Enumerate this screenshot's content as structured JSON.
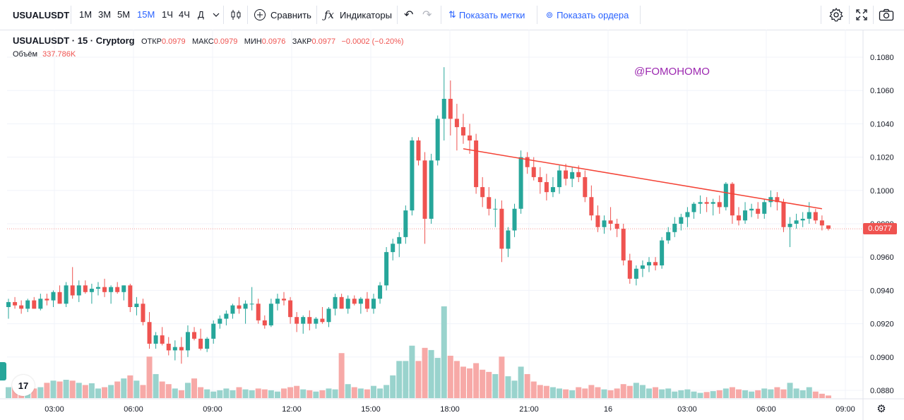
{
  "toolbar": {
    "symbol": "USUALUSDT",
    "intervals": [
      "1М",
      "3М",
      "5М",
      "15М",
      "1Ч",
      "4Ч",
      "Д"
    ],
    "active_interval": "15М",
    "compare_label": "Сравнить",
    "indicators_label": "Индикаторы",
    "show_marks_label": "Показать метки",
    "show_orders_label": "Показать ордера"
  },
  "legend": {
    "title": "USUALUSDT · 15 · Cryptorg",
    "open_label": "ОТКР",
    "open": "0.0979",
    "high_label": "МАКС",
    "high": "0.0979",
    "low_label": "МИН",
    "low": "0.0976",
    "close_label": "ЗАКР",
    "close": "0.0977",
    "change": "−0.0002 (−0.20%)",
    "volume_label": "Объём",
    "volume": "337.786K"
  },
  "watermark": "@FOMOHOMO",
  "last_price_label": "0.0977",
  "colors": {
    "up": "#26a69a",
    "down": "#ef5350",
    "trendline": "#f44336",
    "accent": "#2962ff",
    "watermark": "#9c27b0"
  },
  "chart_data": {
    "type": "candlestick",
    "price_ticks": [
      "0.1080",
      "0.1060",
      "0.1040",
      "0.1020",
      "0.1000",
      "0.0980",
      "0.0960",
      "0.0940",
      "0.0920",
      "0.0900",
      "0.0880"
    ],
    "time_ticks": [
      "03:00",
      "06:00",
      "09:00",
      "12:00",
      "15:00",
      "18:00",
      "21:00",
      "16",
      "03:00",
      "06:00",
      "09:00"
    ],
    "ylim": [
      0.0874,
      0.1085
    ],
    "last_price": 0.0977,
    "trendline": {
      "from": {
        "candle": 71,
        "price": 0.1025
      },
      "to": {
        "candle": 127,
        "price": 0.0989
      }
    },
    "candles": [
      {
        "o": 0.093,
        "h": 0.0935,
        "l": 0.0923,
        "c": 0.0933,
        "v": 25
      },
      {
        "o": 0.0933,
        "h": 0.0936,
        "l": 0.0929,
        "c": 0.0931,
        "v": 30
      },
      {
        "o": 0.0931,
        "h": 0.0934,
        "l": 0.0926,
        "c": 0.0929,
        "v": 28
      },
      {
        "o": 0.0929,
        "h": 0.0935,
        "l": 0.0927,
        "c": 0.0934,
        "v": 18
      },
      {
        "o": 0.0934,
        "h": 0.0936,
        "l": 0.0929,
        "c": 0.0929,
        "v": 22
      },
      {
        "o": 0.0929,
        "h": 0.0938,
        "l": 0.0928,
        "c": 0.0935,
        "v": 25
      },
      {
        "o": 0.0935,
        "h": 0.0938,
        "l": 0.0931,
        "c": 0.0934,
        "v": 35
      },
      {
        "o": 0.0934,
        "h": 0.094,
        "l": 0.093,
        "c": 0.0939,
        "v": 40
      },
      {
        "o": 0.0939,
        "h": 0.0943,
        "l": 0.0932,
        "c": 0.0932,
        "v": 38
      },
      {
        "o": 0.0932,
        "h": 0.0945,
        "l": 0.093,
        "c": 0.0943,
        "v": 42
      },
      {
        "o": 0.0943,
        "h": 0.0954,
        "l": 0.0935,
        "c": 0.0937,
        "v": 40
      },
      {
        "o": 0.0937,
        "h": 0.0946,
        "l": 0.0933,
        "c": 0.0943,
        "v": 35
      },
      {
        "o": 0.0943,
        "h": 0.0946,
        "l": 0.0938,
        "c": 0.0939,
        "v": 30
      },
      {
        "o": 0.0939,
        "h": 0.0944,
        "l": 0.0932,
        "c": 0.0941,
        "v": 34
      },
      {
        "o": 0.0941,
        "h": 0.0945,
        "l": 0.0937,
        "c": 0.0942,
        "v": 22
      },
      {
        "o": 0.0942,
        "h": 0.0947,
        "l": 0.0936,
        "c": 0.0939,
        "v": 25
      },
      {
        "o": 0.0939,
        "h": 0.0943,
        "l": 0.0932,
        "c": 0.0942,
        "v": 30
      },
      {
        "o": 0.0942,
        "h": 0.0945,
        "l": 0.0938,
        "c": 0.0939,
        "v": 38
      },
      {
        "o": 0.0939,
        "h": 0.0943,
        "l": 0.0934,
        "c": 0.0943,
        "v": 45
      },
      {
        "o": 0.0943,
        "h": 0.0944,
        "l": 0.0927,
        "c": 0.093,
        "v": 52
      },
      {
        "o": 0.093,
        "h": 0.0936,
        "l": 0.0925,
        "c": 0.0932,
        "v": 40
      },
      {
        "o": 0.0932,
        "h": 0.0935,
        "l": 0.0919,
        "c": 0.0921,
        "v": 30
      },
      {
        "o": 0.0921,
        "h": 0.0927,
        "l": 0.0905,
        "c": 0.0908,
        "v": 95
      },
      {
        "o": 0.0908,
        "h": 0.0915,
        "l": 0.0905,
        "c": 0.0913,
        "v": 55
      },
      {
        "o": 0.0913,
        "h": 0.0918,
        "l": 0.0907,
        "c": 0.0908,
        "v": 38
      },
      {
        "o": 0.0908,
        "h": 0.0912,
        "l": 0.0901,
        "c": 0.0904,
        "v": 32
      },
      {
        "o": 0.0904,
        "h": 0.091,
        "l": 0.0898,
        "c": 0.0906,
        "v": 22
      },
      {
        "o": 0.0906,
        "h": 0.0912,
        "l": 0.0896,
        "c": 0.0904,
        "v": 18
      },
      {
        "o": 0.0904,
        "h": 0.0919,
        "l": 0.09,
        "c": 0.0915,
        "v": 35
      },
      {
        "o": 0.0915,
        "h": 0.0918,
        "l": 0.091,
        "c": 0.0911,
        "v": 45
      },
      {
        "o": 0.0911,
        "h": 0.0917,
        "l": 0.0904,
        "c": 0.0905,
        "v": 25
      },
      {
        "o": 0.0905,
        "h": 0.0912,
        "l": 0.0903,
        "c": 0.0911,
        "v": 20
      },
      {
        "o": 0.0911,
        "h": 0.0922,
        "l": 0.0908,
        "c": 0.092,
        "v": 15
      },
      {
        "o": 0.092,
        "h": 0.0925,
        "l": 0.0917,
        "c": 0.0923,
        "v": 18
      },
      {
        "o": 0.0923,
        "h": 0.0928,
        "l": 0.0919,
        "c": 0.0926,
        "v": 22
      },
      {
        "o": 0.0926,
        "h": 0.0932,
        "l": 0.0923,
        "c": 0.0931,
        "v": 18
      },
      {
        "o": 0.0931,
        "h": 0.0936,
        "l": 0.0926,
        "c": 0.0929,
        "v": 25
      },
      {
        "o": 0.0929,
        "h": 0.0934,
        "l": 0.092,
        "c": 0.0932,
        "v": 20
      },
      {
        "o": 0.0932,
        "h": 0.0942,
        "l": 0.0928,
        "c": 0.0932,
        "v": 18
      },
      {
        "o": 0.0932,
        "h": 0.0935,
        "l": 0.092,
        "c": 0.0922,
        "v": 22
      },
      {
        "o": 0.0922,
        "h": 0.0925,
        "l": 0.0917,
        "c": 0.0919,
        "v": 20
      },
      {
        "o": 0.0919,
        "h": 0.0935,
        "l": 0.0918,
        "c": 0.0932,
        "v": 18
      },
      {
        "o": 0.0932,
        "h": 0.0938,
        "l": 0.0928,
        "c": 0.0935,
        "v": 15
      },
      {
        "o": 0.0935,
        "h": 0.0939,
        "l": 0.0931,
        "c": 0.0934,
        "v": 22
      },
      {
        "o": 0.0934,
        "h": 0.0936,
        "l": 0.092,
        "c": 0.0924,
        "v": 25
      },
      {
        "o": 0.0924,
        "h": 0.0927,
        "l": 0.0915,
        "c": 0.092,
        "v": 28
      },
      {
        "o": 0.092,
        "h": 0.0925,
        "l": 0.0914,
        "c": 0.0924,
        "v": 20
      },
      {
        "o": 0.0924,
        "h": 0.0928,
        "l": 0.0916,
        "c": 0.092,
        "v": 18
      },
      {
        "o": 0.092,
        "h": 0.0924,
        "l": 0.0917,
        "c": 0.0923,
        "v": 15
      },
      {
        "o": 0.0923,
        "h": 0.093,
        "l": 0.092,
        "c": 0.0921,
        "v": 18
      },
      {
        "o": 0.0921,
        "h": 0.093,
        "l": 0.0918,
        "c": 0.0929,
        "v": 22
      },
      {
        "o": 0.0929,
        "h": 0.0938,
        "l": 0.0925,
        "c": 0.0936,
        "v": 20
      },
      {
        "o": 0.0936,
        "h": 0.0938,
        "l": 0.0929,
        "c": 0.0929,
        "v": 103
      },
      {
        "o": 0.0929,
        "h": 0.0937,
        "l": 0.0926,
        "c": 0.0935,
        "v": 32
      },
      {
        "o": 0.0935,
        "h": 0.0937,
        "l": 0.0931,
        "c": 0.0932,
        "v": 25
      },
      {
        "o": 0.0932,
        "h": 0.0936,
        "l": 0.0926,
        "c": 0.0935,
        "v": 22
      },
      {
        "o": 0.0935,
        "h": 0.0939,
        "l": 0.0927,
        "c": 0.0929,
        "v": 20
      },
      {
        "o": 0.0929,
        "h": 0.0938,
        "l": 0.0926,
        "c": 0.0935,
        "v": 28
      },
      {
        "o": 0.0935,
        "h": 0.0945,
        "l": 0.0932,
        "c": 0.0943,
        "v": 22
      },
      {
        "o": 0.0943,
        "h": 0.0966,
        "l": 0.094,
        "c": 0.0963,
        "v": 30
      },
      {
        "o": 0.0963,
        "h": 0.0971,
        "l": 0.0958,
        "c": 0.0968,
        "v": 52
      },
      {
        "o": 0.0968,
        "h": 0.0975,
        "l": 0.096,
        "c": 0.0972,
        "v": 85
      },
      {
        "o": 0.0972,
        "h": 0.0991,
        "l": 0.0968,
        "c": 0.0988,
        "v": 85
      },
      {
        "o": 0.0988,
        "h": 0.1032,
        "l": 0.0985,
        "c": 0.103,
        "v": 120
      },
      {
        "o": 0.103,
        "h": 0.1032,
        "l": 0.1015,
        "c": 0.1018,
        "v": 85
      },
      {
        "o": 0.1018,
        "h": 0.1023,
        "l": 0.0968,
        "c": 0.0983,
        "v": 115
      },
      {
        "o": 0.0983,
        "h": 0.1022,
        "l": 0.098,
        "c": 0.1018,
        "v": 110
      },
      {
        "o": 0.1018,
        "h": 0.1045,
        "l": 0.1015,
        "c": 0.1043,
        "v": 92
      },
      {
        "o": 0.1043,
        "h": 0.1074,
        "l": 0.103,
        "c": 0.1055,
        "v": 210
      },
      {
        "o": 0.1055,
        "h": 0.1066,
        "l": 0.1033,
        "c": 0.1043,
        "v": 97
      },
      {
        "o": 0.1043,
        "h": 0.1052,
        "l": 0.1024,
        "c": 0.1038,
        "v": 85
      },
      {
        "o": 0.1038,
        "h": 0.1046,
        "l": 0.1028,
        "c": 0.1033,
        "v": 72
      },
      {
        "o": 0.1033,
        "h": 0.104,
        "l": 0.1022,
        "c": 0.103,
        "v": 68
      },
      {
        "o": 0.103,
        "h": 0.1034,
        "l": 0.0998,
        "c": 0.1002,
        "v": 80
      },
      {
        "o": 0.1002,
        "h": 0.1008,
        "l": 0.099,
        "c": 0.0996,
        "v": 65
      },
      {
        "o": 0.0996,
        "h": 0.1002,
        "l": 0.0985,
        "c": 0.0989,
        "v": 60
      },
      {
        "o": 0.0989,
        "h": 0.0995,
        "l": 0.0978,
        "c": 0.0989,
        "v": 55
      },
      {
        "o": 0.0989,
        "h": 0.0994,
        "l": 0.0957,
        "c": 0.0965,
        "v": 95
      },
      {
        "o": 0.0965,
        "h": 0.0978,
        "l": 0.096,
        "c": 0.0976,
        "v": 50
      },
      {
        "o": 0.0976,
        "h": 0.0992,
        "l": 0.0972,
        "c": 0.0989,
        "v": 40
      },
      {
        "o": 0.0989,
        "h": 0.1024,
        "l": 0.0986,
        "c": 0.102,
        "v": 72
      },
      {
        "o": 0.102,
        "h": 0.1023,
        "l": 0.101,
        "c": 0.1014,
        "v": 55
      },
      {
        "o": 0.1014,
        "h": 0.102,
        "l": 0.1006,
        "c": 0.1008,
        "v": 38
      },
      {
        "o": 0.1008,
        "h": 0.1014,
        "l": 0.0998,
        "c": 0.1005,
        "v": 30
      },
      {
        "o": 0.1005,
        "h": 0.101,
        "l": 0.0994,
        "c": 0.0999,
        "v": 28
      },
      {
        "o": 0.0999,
        "h": 0.1008,
        "l": 0.0996,
        "c": 0.1002,
        "v": 25
      },
      {
        "o": 0.1002,
        "h": 0.1015,
        "l": 0.0998,
        "c": 0.1012,
        "v": 22
      },
      {
        "o": 0.1012,
        "h": 0.1016,
        "l": 0.1003,
        "c": 0.1007,
        "v": 20
      },
      {
        "o": 0.1007,
        "h": 0.1014,
        "l": 0.1002,
        "c": 0.1011,
        "v": 18
      },
      {
        "o": 0.1011,
        "h": 0.1015,
        "l": 0.1005,
        "c": 0.1008,
        "v": 25
      },
      {
        "o": 0.1008,
        "h": 0.1012,
        "l": 0.0993,
        "c": 0.0996,
        "v": 22
      },
      {
        "o": 0.0996,
        "h": 0.1003,
        "l": 0.0982,
        "c": 0.0985,
        "v": 30
      },
      {
        "o": 0.0985,
        "h": 0.0991,
        "l": 0.0975,
        "c": 0.0978,
        "v": 25
      },
      {
        "o": 0.0978,
        "h": 0.0985,
        "l": 0.0974,
        "c": 0.0982,
        "v": 20
      },
      {
        "o": 0.0982,
        "h": 0.099,
        "l": 0.0976,
        "c": 0.098,
        "v": 18
      },
      {
        "o": 0.098,
        "h": 0.0983,
        "l": 0.0972,
        "c": 0.0977,
        "v": 22
      },
      {
        "o": 0.0977,
        "h": 0.098,
        "l": 0.0955,
        "c": 0.0958,
        "v": 32
      },
      {
        "o": 0.0958,
        "h": 0.0962,
        "l": 0.0944,
        "c": 0.0947,
        "v": 28
      },
      {
        "o": 0.0947,
        "h": 0.0955,
        "l": 0.0943,
        "c": 0.0953,
        "v": 35
      },
      {
        "o": 0.0953,
        "h": 0.0958,
        "l": 0.0948,
        "c": 0.0955,
        "v": 30
      },
      {
        "o": 0.0955,
        "h": 0.096,
        "l": 0.0951,
        "c": 0.0957,
        "v": 22
      },
      {
        "o": 0.0957,
        "h": 0.096,
        "l": 0.0952,
        "c": 0.0955,
        "v": 25
      },
      {
        "o": 0.0955,
        "h": 0.0972,
        "l": 0.0953,
        "c": 0.097,
        "v": 20
      },
      {
        "o": 0.097,
        "h": 0.0978,
        "l": 0.0968,
        "c": 0.0975,
        "v": 22
      },
      {
        "o": 0.0975,
        "h": 0.0984,
        "l": 0.0972,
        "c": 0.098,
        "v": 15
      },
      {
        "o": 0.098,
        "h": 0.0986,
        "l": 0.0976,
        "c": 0.0984,
        "v": 18
      },
      {
        "o": 0.0984,
        "h": 0.099,
        "l": 0.0978,
        "c": 0.0987,
        "v": 20
      },
      {
        "o": 0.0987,
        "h": 0.0993,
        "l": 0.0983,
        "c": 0.0992,
        "v": 15
      },
      {
        "o": 0.0992,
        "h": 0.0997,
        "l": 0.0986,
        "c": 0.0993,
        "v": 12
      },
      {
        "o": 0.0993,
        "h": 0.0996,
        "l": 0.0987,
        "c": 0.0992,
        "v": 14
      },
      {
        "o": 0.0992,
        "h": 0.0995,
        "l": 0.0985,
        "c": 0.0993,
        "v": 16
      },
      {
        "o": 0.0993,
        "h": 0.0997,
        "l": 0.0986,
        "c": 0.099,
        "v": 18
      },
      {
        "o": 0.099,
        "h": 0.1005,
        "l": 0.0988,
        "c": 0.1004,
        "v": 22
      },
      {
        "o": 0.1004,
        "h": 0.1005,
        "l": 0.098,
        "c": 0.0985,
        "v": 25
      },
      {
        "o": 0.0985,
        "h": 0.099,
        "l": 0.0979,
        "c": 0.0982,
        "v": 20
      },
      {
        "o": 0.0982,
        "h": 0.0993,
        "l": 0.098,
        "c": 0.0988,
        "v": 18
      },
      {
        "o": 0.0988,
        "h": 0.0992,
        "l": 0.0984,
        "c": 0.0989,
        "v": 15
      },
      {
        "o": 0.0989,
        "h": 0.0993,
        "l": 0.0983,
        "c": 0.0986,
        "v": 18
      },
      {
        "o": 0.0986,
        "h": 0.0995,
        "l": 0.0983,
        "c": 0.0993,
        "v": 22
      },
      {
        "o": 0.0993,
        "h": 0.1,
        "l": 0.099,
        "c": 0.0996,
        "v": 20
      },
      {
        "o": 0.0996,
        "h": 0.0999,
        "l": 0.0988,
        "c": 0.0993,
        "v": 25
      },
      {
        "o": 0.0993,
        "h": 0.0995,
        "l": 0.0975,
        "c": 0.0978,
        "v": 20
      },
      {
        "o": 0.0978,
        "h": 0.0984,
        "l": 0.0966,
        "c": 0.098,
        "v": 35
      },
      {
        "o": 0.098,
        "h": 0.0986,
        "l": 0.0977,
        "c": 0.0982,
        "v": 22
      },
      {
        "o": 0.0982,
        "h": 0.0987,
        "l": 0.0978,
        "c": 0.0983,
        "v": 18
      },
      {
        "o": 0.0983,
        "h": 0.0993,
        "l": 0.098,
        "c": 0.0987,
        "v": 25
      },
      {
        "o": 0.0987,
        "h": 0.0989,
        "l": 0.098,
        "c": 0.0982,
        "v": 15
      },
      {
        "o": 0.0982,
        "h": 0.0985,
        "l": 0.0976,
        "c": 0.0979,
        "v": 10
      },
      {
        "o": 0.0979,
        "h": 0.0979,
        "l": 0.0976,
        "c": 0.0977,
        "v": 6
      }
    ]
  }
}
